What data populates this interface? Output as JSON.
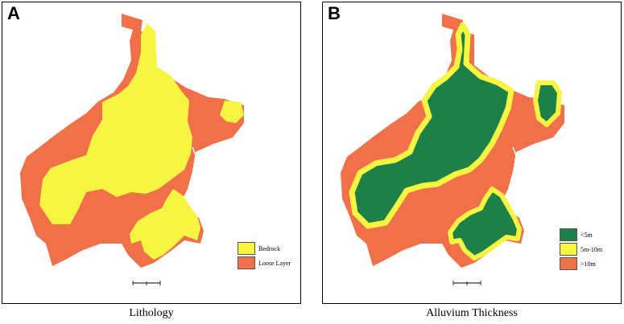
{
  "panels": [
    {
      "label": "A",
      "caption": "Lithology",
      "legend": [
        {
          "label": "Bedrock",
          "color": "#f5f542"
        },
        {
          "label": "Loose Layer",
          "color": "#f0704a"
        }
      ]
    },
    {
      "label": "B",
      "caption": "Alluvium Thickness",
      "legend": [
        {
          "label": "<5m",
          "color": "#1d8048"
        },
        {
          "label": "5m-10m",
          "color": "#f5f542"
        },
        {
          "label": ">10m",
          "color": "#f0704a"
        }
      ]
    }
  ],
  "colors": {
    "bedrock": "#f5f542",
    "loose_layer": "#f0704a",
    "thin": "#1d8048",
    "medium": "#f5f542",
    "thick": "#f0704a"
  }
}
